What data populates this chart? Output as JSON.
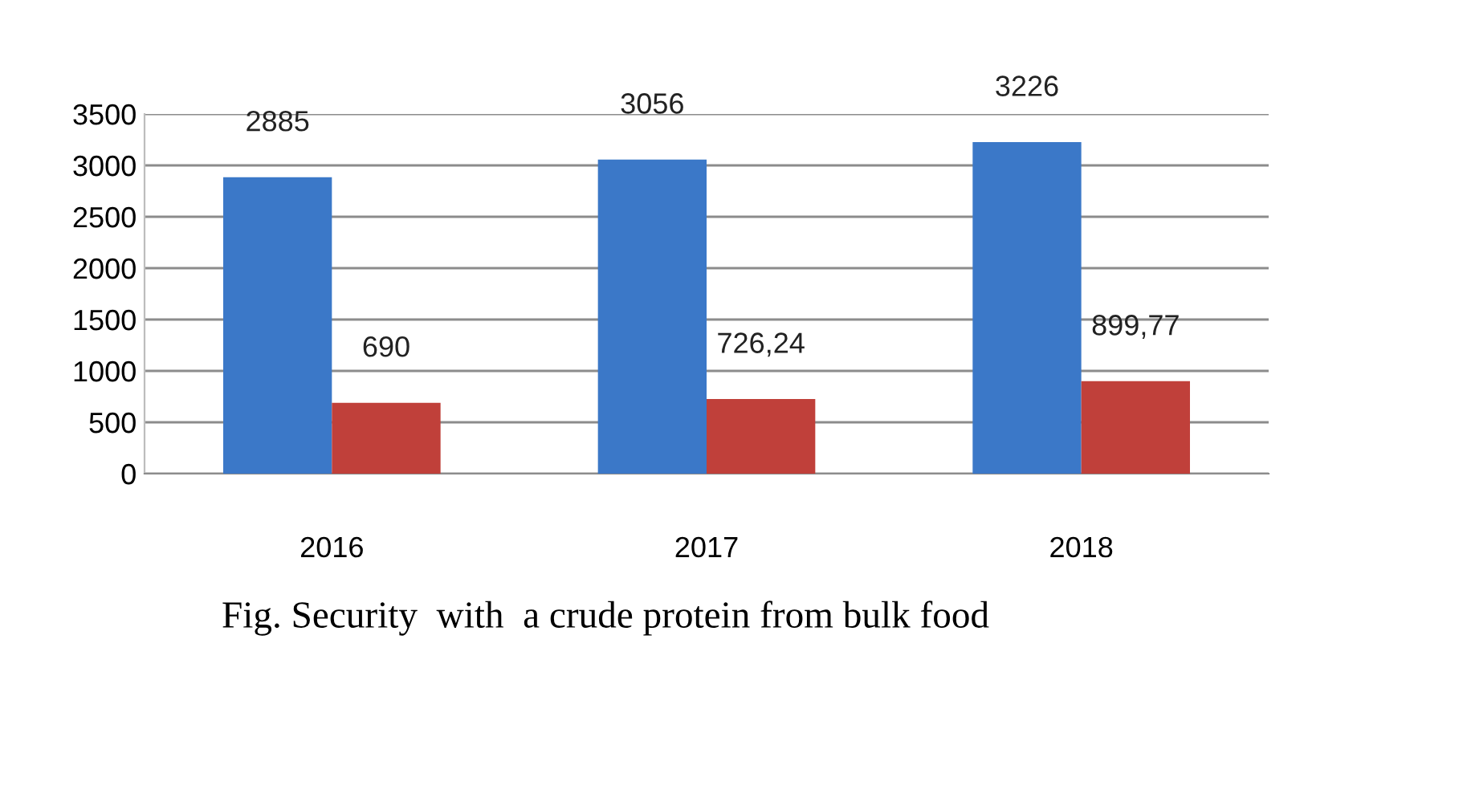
{
  "chart_data": {
    "type": "bar",
    "categories": [
      "2016",
      "2017",
      "2018"
    ],
    "series": [
      {
        "color": "#3b78c8",
        "values": [
          2885,
          3056,
          3226
        ],
        "value_labels": [
          "2885",
          "3056",
          "3226"
        ]
      },
      {
        "color": "#c0403a",
        "values": [
          690,
          726.24,
          899.77
        ],
        "value_labels": [
          "690",
          "726,24",
          "899,77"
        ]
      }
    ],
    "ylim": [
      0,
      3500
    ],
    "yticks": [
      0,
      500,
      1000,
      1500,
      2000,
      2500,
      3000,
      3500
    ],
    "grid": "y",
    "annotations": [
      "Fig. Security  with  a crude protein from bulk food"
    ]
  }
}
